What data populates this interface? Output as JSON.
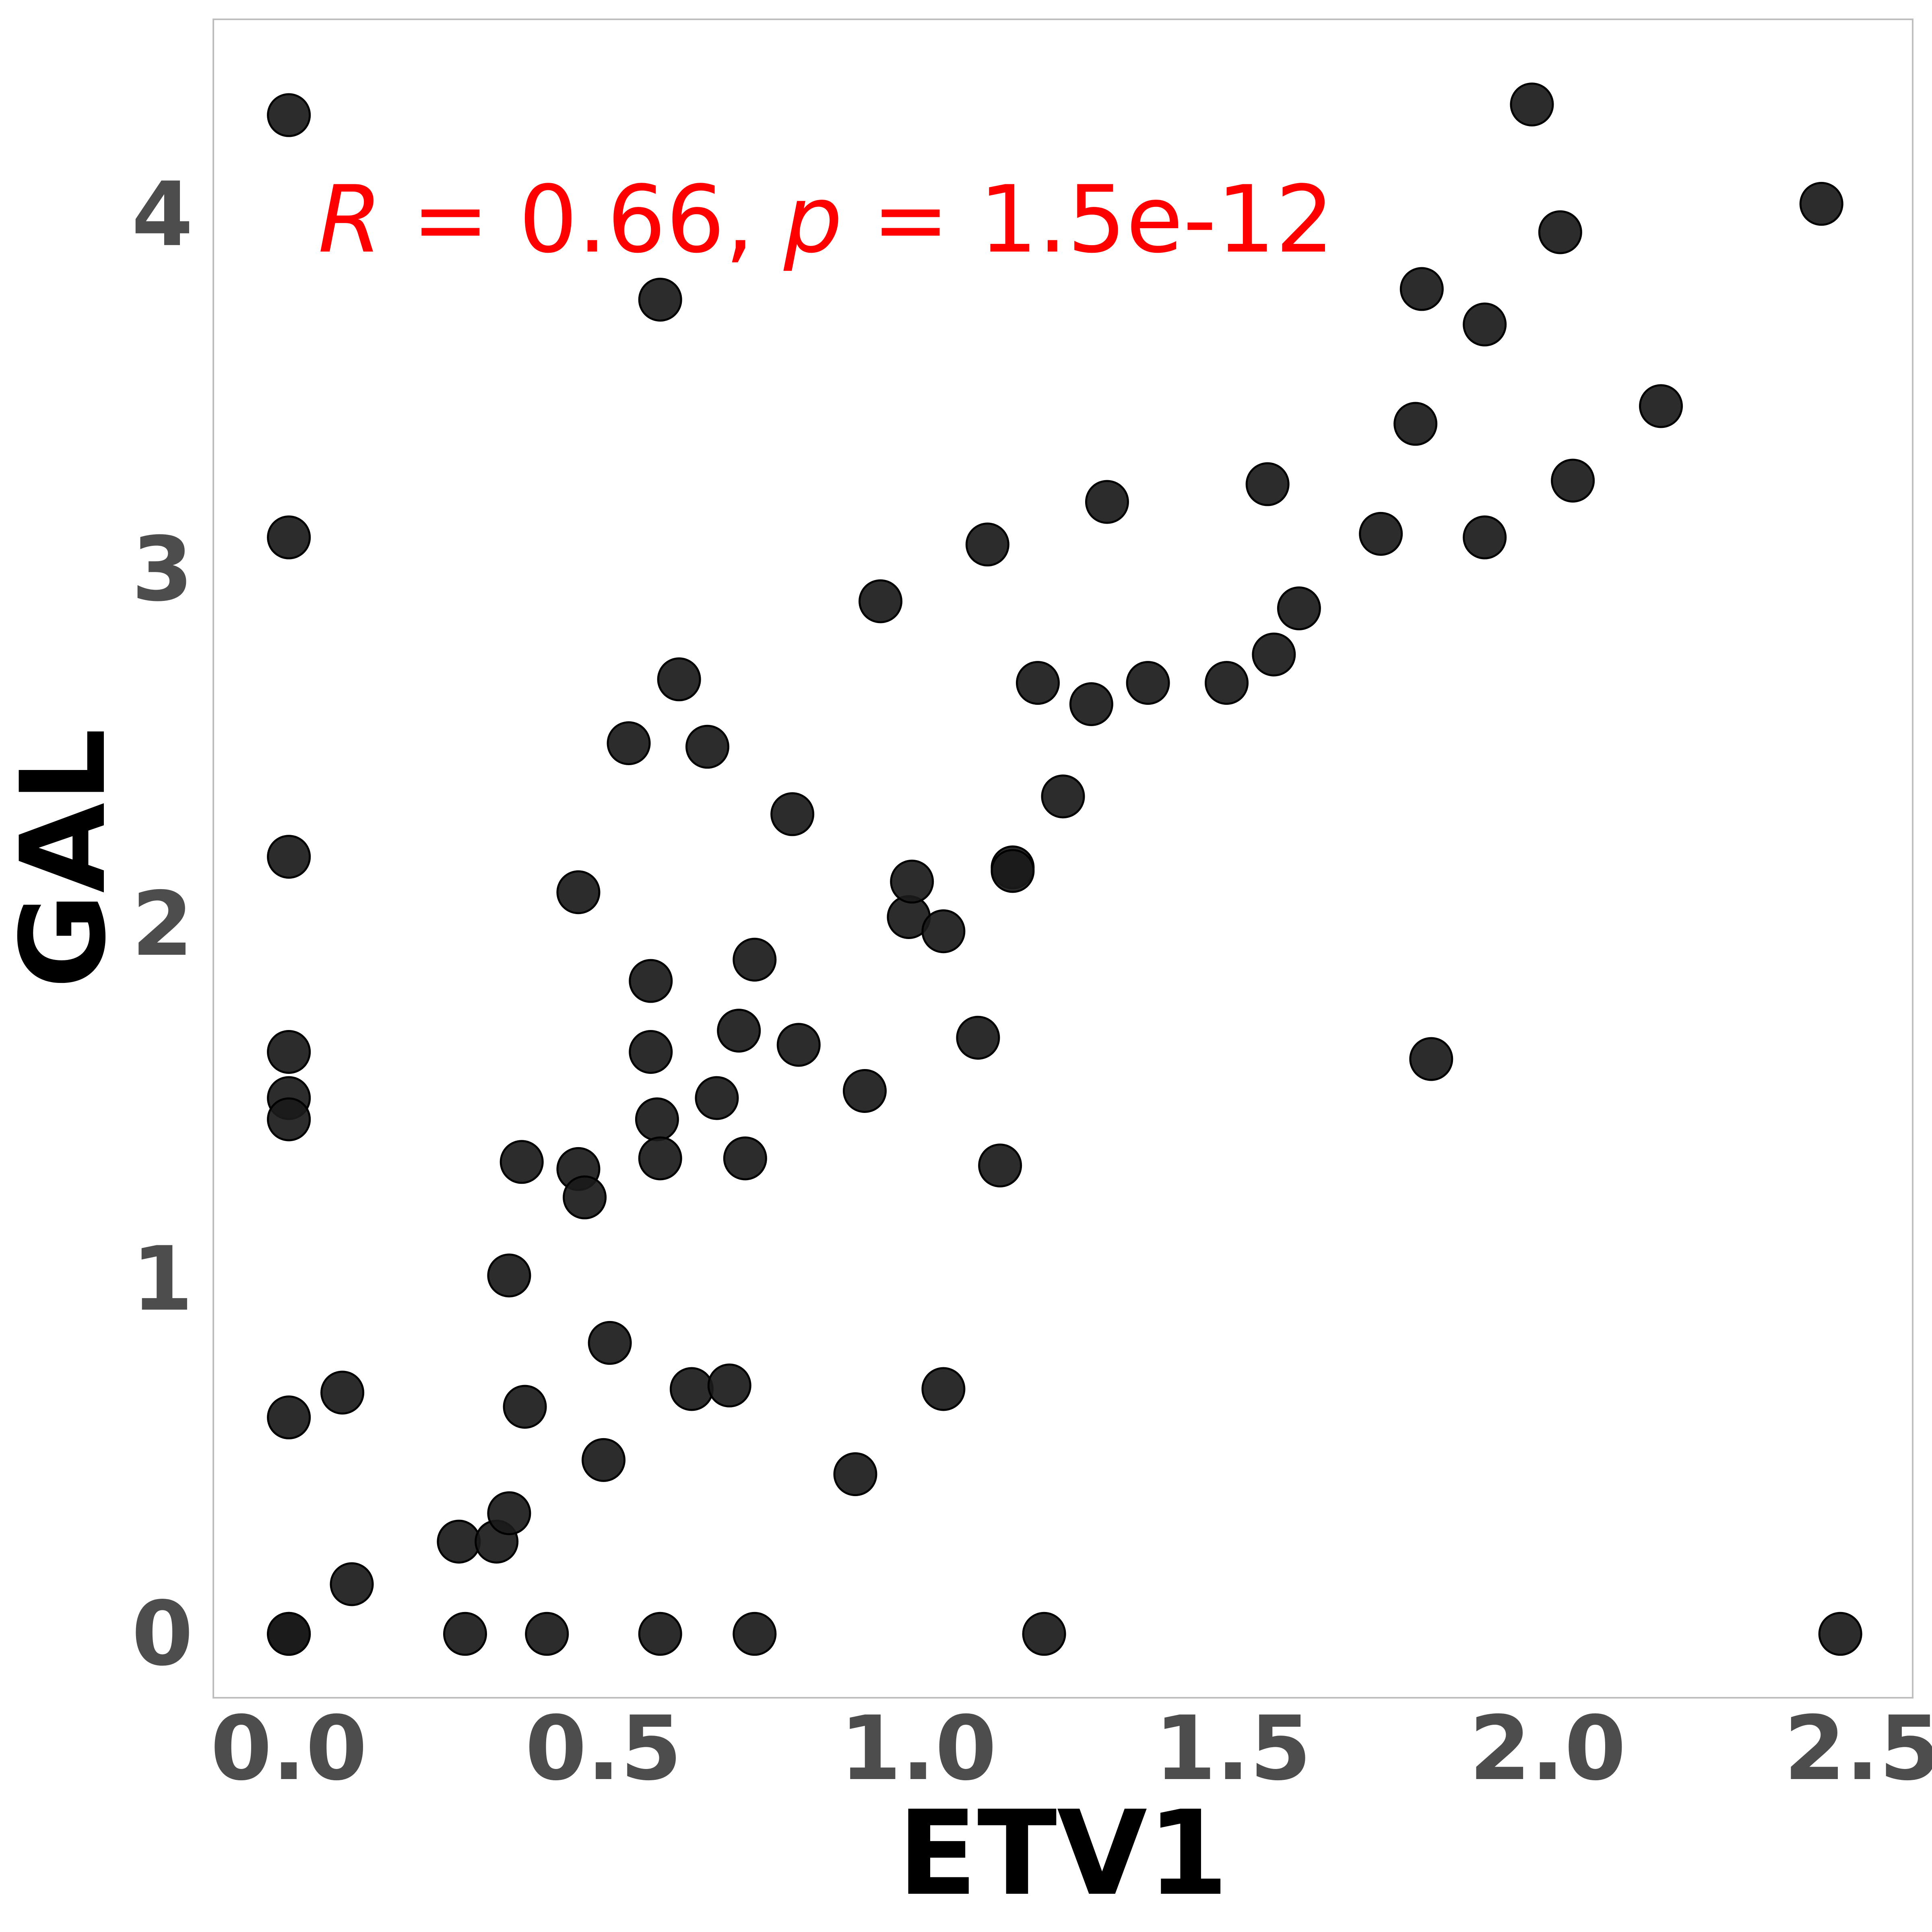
{
  "chart_data": {
    "type": "scatter",
    "xlabel": "ETV1",
    "ylabel": "GAL",
    "xlim": [
      -0.12,
      2.58
    ],
    "ylim": [
      -0.18,
      4.55
    ],
    "xticks": [
      "0.0",
      "0.5",
      "1.0",
      "1.5",
      "2.0",
      "2.5"
    ],
    "xtick_values": [
      0,
      0.5,
      1.0,
      1.5,
      2.0,
      2.5
    ],
    "yticks": [
      "0",
      "1",
      "2",
      "3",
      "4"
    ],
    "ytick_values": [
      0,
      1,
      2,
      3,
      4
    ],
    "grid": false,
    "marker_color": "#1a1a1a",
    "annotation": {
      "r_symbol": "R",
      "r_text": " = 0.66, ",
      "p_symbol": "p",
      "p_text": " = 1.5e-12",
      "color": "#ff0000"
    },
    "points": [
      {
        "x": 0.0,
        "y": 4.28
      },
      {
        "x": 0.0,
        "y": 3.09
      },
      {
        "x": 0.0,
        "y": 2.19
      },
      {
        "x": 0.0,
        "y": 1.64
      },
      {
        "x": 0.0,
        "y": 1.51
      },
      {
        "x": 0.0,
        "y": 1.45
      },
      {
        "x": 0.0,
        "y": 0.61
      },
      {
        "x": 0.0,
        "y": 0.0
      },
      {
        "x": 0.0,
        "y": 0.0
      },
      {
        "x": 0.085,
        "y": 0.68
      },
      {
        "x": 0.1,
        "y": 0.14
      },
      {
        "x": 0.27,
        "y": 0.26
      },
      {
        "x": 0.28,
        "y": 0.0
      },
      {
        "x": 0.33,
        "y": 0.26
      },
      {
        "x": 0.35,
        "y": 0.34
      },
      {
        "x": 0.35,
        "y": 1.01
      },
      {
        "x": 0.37,
        "y": 1.33
      },
      {
        "x": 0.375,
        "y": 0.64
      },
      {
        "x": 0.41,
        "y": 0.0
      },
      {
        "x": 0.46,
        "y": 1.31
      },
      {
        "x": 0.46,
        "y": 2.09
      },
      {
        "x": 0.47,
        "y": 1.23
      },
      {
        "x": 0.5,
        "y": 0.49
      },
      {
        "x": 0.51,
        "y": 0.82
      },
      {
        "x": 0.54,
        "y": 2.51
      },
      {
        "x": 0.575,
        "y": 1.84
      },
      {
        "x": 0.575,
        "y": 1.64
      },
      {
        "x": 0.585,
        "y": 1.45
      },
      {
        "x": 0.59,
        "y": 1.34
      },
      {
        "x": 0.59,
        "y": 0.0
      },
      {
        "x": 0.59,
        "y": 3.76
      },
      {
        "x": 0.62,
        "y": 2.69
      },
      {
        "x": 0.64,
        "y": 0.69
      },
      {
        "x": 0.665,
        "y": 2.5
      },
      {
        "x": 0.68,
        "y": 1.51
      },
      {
        "x": 0.7,
        "y": 0.7
      },
      {
        "x": 0.715,
        "y": 1.7
      },
      {
        "x": 0.725,
        "y": 1.34
      },
      {
        "x": 0.74,
        "y": 1.9
      },
      {
        "x": 0.74,
        "y": 0.0
      },
      {
        "x": 0.8,
        "y": 2.31
      },
      {
        "x": 0.81,
        "y": 1.66
      },
      {
        "x": 0.9,
        "y": 0.45
      },
      {
        "x": 0.915,
        "y": 1.53
      },
      {
        "x": 0.94,
        "y": 2.91
      },
      {
        "x": 0.985,
        "y": 2.02
      },
      {
        "x": 0.99,
        "y": 2.12
      },
      {
        "x": 1.04,
        "y": 0.69
      },
      {
        "x": 1.04,
        "y": 1.98
      },
      {
        "x": 1.095,
        "y": 1.68
      },
      {
        "x": 1.11,
        "y": 3.07
      },
      {
        "x": 1.13,
        "y": 1.32
      },
      {
        "x": 1.15,
        "y": 2.16
      },
      {
        "x": 1.15,
        "y": 2.15
      },
      {
        "x": 1.19,
        "y": 2.68
      },
      {
        "x": 1.2,
        "y": 0.0
      },
      {
        "x": 1.23,
        "y": 2.36
      },
      {
        "x": 1.275,
        "y": 2.62
      },
      {
        "x": 1.3,
        "y": 3.19
      },
      {
        "x": 1.365,
        "y": 2.68
      },
      {
        "x": 1.49,
        "y": 2.68
      },
      {
        "x": 1.555,
        "y": 3.24
      },
      {
        "x": 1.565,
        "y": 2.76
      },
      {
        "x": 1.605,
        "y": 2.89
      },
      {
        "x": 1.735,
        "y": 3.1
      },
      {
        "x": 1.79,
        "y": 3.41
      },
      {
        "x": 1.8,
        "y": 3.79
      },
      {
        "x": 1.815,
        "y": 1.62
      },
      {
        "x": 1.9,
        "y": 3.09
      },
      {
        "x": 1.9,
        "y": 3.69
      },
      {
        "x": 1.975,
        "y": 4.31
      },
      {
        "x": 2.02,
        "y": 3.95
      },
      {
        "x": 2.04,
        "y": 3.25
      },
      {
        "x": 2.18,
        "y": 3.46
      },
      {
        "x": 2.435,
        "y": 4.03
      },
      {
        "x": 2.465,
        "y": 0.0
      }
    ]
  }
}
